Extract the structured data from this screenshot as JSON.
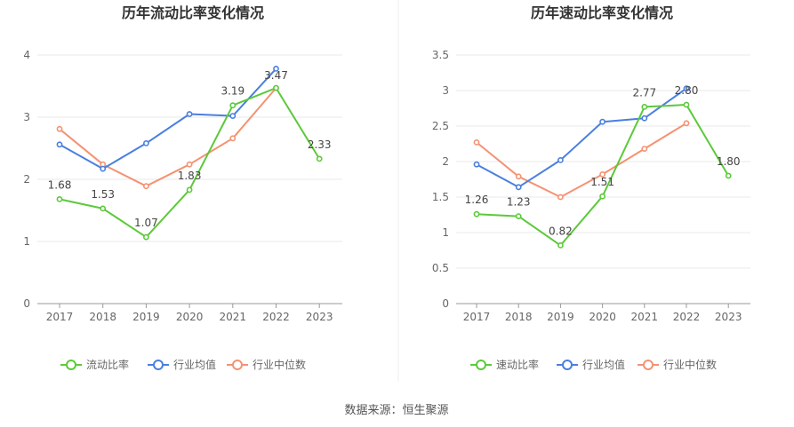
{
  "source": "数据来源：恒生聚源",
  "chart_data": [
    {
      "type": "line",
      "title": "历年流动比率变化情况",
      "xlabel": "",
      "ylabel": "",
      "categories": [
        "2017",
        "2018",
        "2019",
        "2020",
        "2021",
        "2022",
        "2023"
      ],
      "ylim": [
        0,
        4
      ],
      "yticks": [
        "0",
        "1",
        "2",
        "3",
        "4"
      ],
      "grid": true,
      "legend_position": "bottom",
      "series": [
        {
          "name": "流动比率",
          "color": "#5cc93a",
          "values": [
            1.68,
            1.53,
            1.07,
            1.83,
            3.19,
            3.47,
            2.33
          ],
          "labels": [
            "1.68",
            "1.53",
            "1.07",
            "1.83",
            "3.19",
            "3.47",
            "2.33"
          ]
        },
        {
          "name": "行业均值",
          "color": "#4a7fe0",
          "values": [
            2.56,
            2.17,
            2.58,
            3.05,
            3.02,
            3.78,
            null
          ]
        },
        {
          "name": "行业中位数",
          "color": "#f59272",
          "values": [
            2.81,
            2.24,
            1.89,
            2.24,
            2.66,
            3.47,
            null
          ]
        }
      ]
    },
    {
      "type": "line",
      "title": "历年速动比率变化情况",
      "xlabel": "",
      "ylabel": "",
      "categories": [
        "2017",
        "2018",
        "2019",
        "2020",
        "2021",
        "2022",
        "2023"
      ],
      "ylim": [
        0,
        3.5
      ],
      "yticks": [
        "0",
        "0.5",
        "1",
        "1.5",
        "2",
        "2.5",
        "3",
        "3.5"
      ],
      "grid": true,
      "legend_position": "bottom",
      "series": [
        {
          "name": "速动比率",
          "color": "#5cc93a",
          "values": [
            1.26,
            1.23,
            0.82,
            1.51,
            2.77,
            2.8,
            1.8
          ],
          "labels": [
            "1.26",
            "1.23",
            "0.82",
            "1.51",
            "2.77",
            "2.80",
            "1.80"
          ]
        },
        {
          "name": "行业均值",
          "color": "#4a7fe0",
          "values": [
            1.96,
            1.64,
            2.02,
            2.56,
            2.61,
            3.03,
            null
          ]
        },
        {
          "name": "行业中位数",
          "color": "#f59272",
          "values": [
            2.27,
            1.79,
            1.5,
            1.82,
            2.18,
            2.54,
            null
          ]
        }
      ]
    }
  ]
}
